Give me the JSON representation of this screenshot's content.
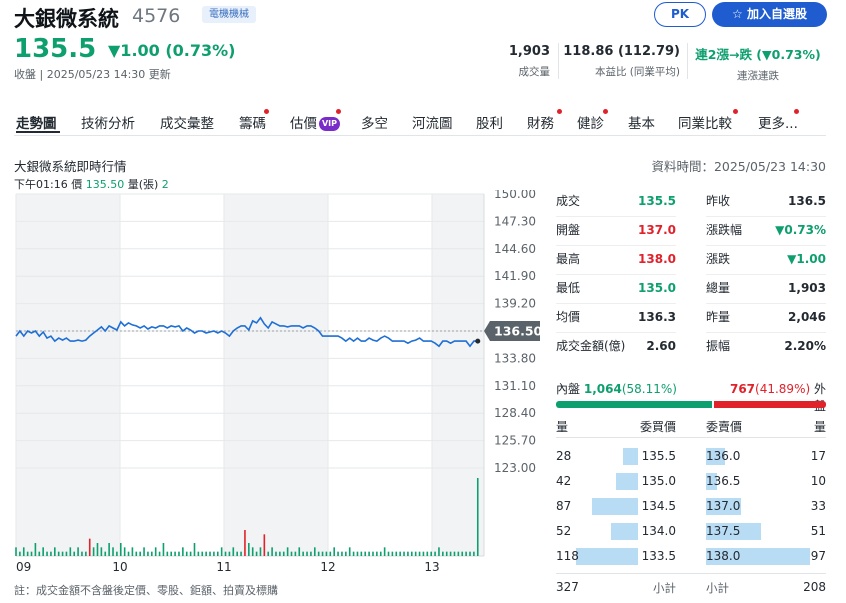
{
  "header": {
    "name": "大銀微系統",
    "code": "4576",
    "tag": "電機機械",
    "price": "135.5",
    "change": "▼1.00 (0.73%)",
    "close_info": "收盤 | 2025/05/23 14:30 更新",
    "pk_label": "PK",
    "add_label": "加入自選股",
    "stats": [
      {
        "value": "1,903",
        "label": "成交量"
      },
      {
        "value": "118.86 (112.79)",
        "label": "本益比 (同業平均)"
      },
      {
        "value": "連2漲→跌 (▼0.73%)",
        "label": "連漲連跌"
      }
    ]
  },
  "tabs": [
    {
      "label": "走勢圖",
      "active": true,
      "dot": false
    },
    {
      "label": "技術分析",
      "dot": false
    },
    {
      "label": "成交彙整",
      "dot": false
    },
    {
      "label": "籌碼",
      "dot": true
    },
    {
      "label": "估價",
      "vip": "VIP",
      "dot": true
    },
    {
      "label": "多空",
      "dot": false
    },
    {
      "label": "河流圖",
      "dot": false
    },
    {
      "label": "股利",
      "dot": false
    },
    {
      "label": "財務",
      "dot": true
    },
    {
      "label": "健診",
      "dot": true
    },
    {
      "label": "基本",
      "dot": false
    },
    {
      "label": "同業比較",
      "dot": true
    },
    {
      "label": "更多...",
      "dot": true
    }
  ],
  "section": {
    "title": "大銀微系統即時行情",
    "data_time": "資料時間：2025/05/23 14:30",
    "cursor": {
      "time": "下午01:16",
      "price_label": "價",
      "price": "135.50",
      "vol_label": "量(張)",
      "vol": "2"
    }
  },
  "colors": {
    "up": "#e0222b",
    "down": "#0e9f6e",
    "line": "#1e6fd6",
    "bar_up": "#e0222b",
    "bar_down": "#0e9f6e",
    "orderbook_bar": "#b9dcf5"
  },
  "chart_data": {
    "type": "line",
    "x_ticks": [
      "09",
      "10",
      "11",
      "12",
      "13"
    ],
    "y_ticks": [
      "150.00",
      "147.30",
      "144.60",
      "141.90",
      "139.20",
      "136.50",
      "133.80",
      "131.10",
      "128.40",
      "125.70",
      "123.00"
    ],
    "ylim": [
      123.0,
      150.0
    ],
    "reference_price": 136.5,
    "current_label": "136.50",
    "price_series": [
      136.0,
      136.5,
      136.0,
      136.5,
      136.3,
      136.5,
      136.0,
      136.4,
      135.8,
      136.0,
      135.5,
      135.8,
      135.6,
      135.8,
      135.5,
      135.5,
      135.6,
      135.5,
      135.6,
      136.0,
      136.3,
      136.6,
      136.9,
      136.5,
      137.0,
      136.8,
      136.6,
      137.4,
      137.0,
      137.3,
      137.1,
      137.0,
      136.8,
      137.0,
      136.7,
      136.9,
      136.8,
      137.0,
      137.0,
      136.8,
      137.0,
      136.9,
      137.0,
      136.5,
      136.8,
      136.6,
      136.3,
      136.5,
      136.5,
      136.3,
      136.4,
      136.5,
      136.3,
      136.5,
      136.3,
      136.0,
      136.5,
      136.8,
      137.0,
      137.0,
      136.6,
      137.5,
      137.3,
      137.8,
      137.2,
      136.8,
      137.4,
      137.2,
      137.0,
      137.0,
      136.9,
      137.0,
      137.0,
      137.0,
      136.8,
      137.0,
      137.0,
      136.8,
      136.5,
      136.0,
      136.0,
      136.0,
      136.0,
      136.0,
      135.8,
      135.5,
      135.8,
      135.5,
      135.8,
      135.5,
      135.5,
      135.8,
      135.6,
      135.5,
      135.8,
      136.0,
      135.8,
      135.5,
      135.5,
      135.5,
      135.5,
      135.3,
      135.5,
      135.6,
      135.8,
      135.5,
      135.5,
      135.5,
      135.3,
      135.0,
      135.5,
      135.5,
      135.3,
      135.5,
      135.5,
      135.5,
      135.5,
      135.0,
      135.5,
      135.5
    ],
    "volume_series": [
      2,
      1,
      2,
      1,
      1,
      3,
      1,
      2,
      1,
      1,
      2,
      1,
      1,
      1,
      2,
      1,
      2,
      1,
      1,
      4,
      2,
      3,
      2,
      1,
      3,
      2,
      1,
      3,
      2,
      1,
      2,
      1,
      1,
      2,
      1,
      1,
      2,
      1,
      3,
      1,
      1,
      1,
      1,
      2,
      1,
      1,
      3,
      1,
      1,
      1,
      1,
      1,
      1,
      2,
      1,
      1,
      2,
      1,
      1,
      6,
      3,
      2,
      1,
      2,
      5,
      1,
      2,
      1,
      1,
      1,
      2,
      1,
      1,
      2,
      1,
      1,
      1,
      2,
      1,
      1,
      1,
      1,
      2,
      1,
      1,
      1,
      2,
      1,
      1,
      1,
      1,
      1,
      1,
      1,
      1,
      2,
      1,
      1,
      1,
      1,
      1,
      1,
      1,
      1,
      1,
      1,
      1,
      1,
      1,
      2,
      1,
      1,
      1,
      1,
      1,
      1,
      1,
      1,
      1,
      18
    ],
    "volume_up_index": [
      19,
      59,
      64
    ],
    "series": [
      {
        "name": "",
        "values": []
      }
    ]
  },
  "quote": {
    "left": [
      {
        "label": "成交",
        "value": "135.5",
        "color": "down"
      },
      {
        "label": "開盤",
        "value": "137.0",
        "color": "up"
      },
      {
        "label": "最高",
        "value": "138.0",
        "color": "up"
      },
      {
        "label": "最低",
        "value": "135.0",
        "color": "down"
      },
      {
        "label": "均價",
        "value": "136.3",
        "color": "plain"
      },
      {
        "label": "成交金額(億)",
        "value": "2.60",
        "color": "plain"
      }
    ],
    "right": [
      {
        "label": "昨收",
        "value": "136.5",
        "color": "plain"
      },
      {
        "label": "漲跌幅",
        "value": "▼0.73%",
        "color": "down"
      },
      {
        "label": "漲跌",
        "value": "▼1.00",
        "color": "down"
      },
      {
        "label": "總量",
        "value": "1,903",
        "color": "plain"
      },
      {
        "label": "昨量",
        "value": "2,046",
        "color": "plain"
      },
      {
        "label": "振幅",
        "value": "2.20%",
        "color": "plain"
      }
    ]
  },
  "inout": {
    "in_label": "內盤",
    "in_value": "1,064",
    "in_pct": "(58.11%)",
    "in_ratio": 0.5811,
    "out_value": "767",
    "out_pct": "(41.89%)",
    "out_label": "外盤"
  },
  "orderbook": {
    "head": {
      "bid_qty": "量",
      "bid_price": "委買價",
      "ask_price": "委賣價",
      "ask_qty": "量"
    },
    "bids": [
      {
        "qty": "28",
        "price": "135.5",
        "ratio": 0.24
      },
      {
        "qty": "42",
        "price": "135.0",
        "ratio": 0.36
      },
      {
        "qty": "87",
        "price": "134.5",
        "ratio": 0.74
      },
      {
        "qty": "52",
        "price": "134.0",
        "ratio": 0.44
      },
      {
        "qty": "118",
        "price": "133.5",
        "ratio": 1.0
      }
    ],
    "asks": [
      {
        "price": "136.0",
        "qty": "17",
        "ratio": 0.18
      },
      {
        "price": "136.5",
        "qty": "10",
        "ratio": 0.11
      },
      {
        "price": "137.0",
        "qty": "33",
        "ratio": 0.34
      },
      {
        "price": "137.5",
        "qty": "51",
        "ratio": 0.53
      },
      {
        "price": "138.0",
        "qty": "97",
        "ratio": 1.0
      }
    ],
    "bid_total": "327",
    "subtotal_label": "小計",
    "ask_total": "208"
  },
  "note": "註：成交金額不含盤後定價、零股、鉅額、拍賣及標購"
}
